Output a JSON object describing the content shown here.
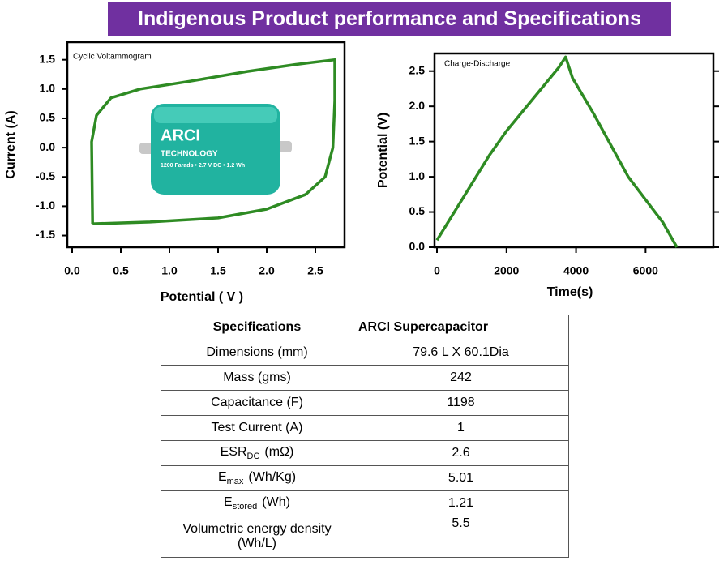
{
  "header": {
    "title": "Indigenous Product performance and Specifications"
  },
  "chart_data": [
    {
      "type": "line",
      "title": "Cyclic Voltammogram",
      "x_label": "Potential ( V )",
      "y_label": "Current (A)",
      "x": [
        0.21,
        0.8,
        1.5,
        2.0,
        2.4,
        2.6,
        2.68,
        2.7,
        2.7,
        2.3,
        1.8,
        1.2,
        0.7,
        0.4,
        0.25,
        0.2,
        0.21
      ],
      "values": [
        -1.3,
        -1.27,
        -1.2,
        -1.05,
        -0.8,
        -0.5,
        0,
        0.8,
        1.5,
        1.42,
        1.3,
        1.13,
        1.0,
        0.85,
        0.55,
        0.1,
        -1.3
      ],
      "color": "#2e8b23",
      "xlim": [
        -0.05,
        2.8
      ],
      "ylim": [
        -1.7,
        1.8
      ],
      "xticks": [
        {
          "value": 0,
          "label": "0.0"
        },
        0.5,
        {
          "value": 1,
          "label": "1.0"
        },
        1.5,
        {
          "value": 2,
          "label": "2.0"
        },
        2.5
      ],
      "yticks": [
        -1.5,
        {
          "value": -1,
          "label": "-1.0"
        },
        -0.5,
        {
          "value": 0,
          "label": "0.0"
        },
        0.5,
        {
          "value": 1,
          "label": "1.0"
        },
        1.5
      ],
      "mirror_ticks": false
    },
    {
      "type": "line",
      "title": "Charge-Discharge",
      "x_label": "Time(s)",
      "y_label": "Potential (V)",
      "x": [
        0,
        500,
        1000,
        1500,
        2000,
        2500,
        3000,
        3500,
        3700,
        3900,
        4500,
        5500,
        6500,
        6900
      ],
      "values": [
        0.1,
        0.5,
        0.9,
        1.3,
        1.65,
        1.95,
        2.25,
        2.55,
        2.7,
        2.4,
        1.9,
        1.0,
        0.35,
        0
      ],
      "color": "#2e8b23",
      "xlim": [
        -70,
        7950
      ],
      "ylim": [
        0,
        2.75
      ],
      "xticks": [
        0,
        2000,
        4000,
        6000
      ],
      "yticks": [
        {
          "value": 0,
          "label": "0.0"
        },
        0.5,
        {
          "value": 1,
          "label": "1.0"
        },
        1.5,
        {
          "value": 2,
          "label": "2.0"
        },
        2.5
      ],
      "mirror_ticks": true
    }
  ],
  "image": {
    "labels": [
      "ARCI",
      "TECHNOLOGY",
      "1200 Farads • 2.7 V DC • 1.2 Wh"
    ]
  },
  "table": {
    "header": [
      "Specifications",
      "ARCI  Supercapacitor"
    ],
    "rows": [
      {
        "label": "Dimensions (mm)",
        "value": "79.6 L X 60.1Dia"
      },
      {
        "label": "Mass (gms)",
        "value": 242
      },
      {
        "label": "Capacitance (F)",
        "value": 1198
      },
      {
        "label": "Test Current (A)",
        "value": 1
      },
      {
        "label": "ESR",
        "sub": "DC",
        "unit": "(mΩ)",
        "value": 2.6
      },
      {
        "label": "E",
        "sub": "max",
        "unit": "(Wh/Kg)",
        "value": 5.01
      },
      {
        "label": "E",
        "sub": "stored",
        "unit": "(Wh)",
        "value": 1.21
      },
      {
        "label": "Volumetric energy density (Wh/L)",
        "value": 5.5
      }
    ]
  }
}
